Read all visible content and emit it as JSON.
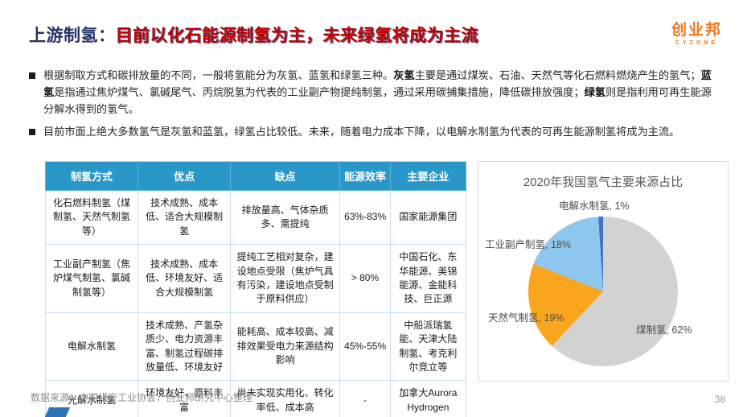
{
  "title": {
    "prefix": "上游制氢：",
    "highlight": "目前以化石能源制氢为主，未来绿氢将成为主流"
  },
  "logo": {
    "name": "创业邦",
    "subname": "CYZONE"
  },
  "bullets": [
    {
      "segments": [
        {
          "text": "根据制取方式和碳排放量的不同，一般将氢能分为灰氢、蓝氢和绿氢三种。",
          "bold": false
        },
        {
          "text": "灰氢",
          "bold": true
        },
        {
          "text": "主要是通过煤炭、石油、天然气等化石燃料燃烧产生的氢气；",
          "bold": false
        },
        {
          "text": "蓝氢",
          "bold": true
        },
        {
          "text": "是指通过焦炉煤气、氯碱尾气、丙烷脱氢为代表的工业副产物提纯制氢，通过采用碳捕集措施，降低碳排放强度；",
          "bold": false
        },
        {
          "text": "绿氢",
          "bold": true
        },
        {
          "text": "则是指利用可再生能源分解水得到的氢气。",
          "bold": false
        }
      ]
    },
    {
      "segments": [
        {
          "text": "目前市面上绝大多数氢气是灰氢和蓝氢，绿氢占比较低。",
          "bold": false
        },
        {
          "text": "未来，随着电力成本下降，以电解水制氢为代表的可再生能源制氢将成为主流。",
          "bold": false
        }
      ]
    }
  ],
  "table": {
    "headers": [
      "制氢方式",
      "优点",
      "缺点",
      "能源效率",
      "主要企业"
    ],
    "rows": [
      [
        "化石燃料制氢（煤制氢、天然气制氢等）",
        "技术成熟、成本低、适合大规模制氢",
        "排放量高、气体杂质多、需提纯",
        "63%-83%",
        "国家能源集团"
      ],
      [
        "工业副产制氢（焦炉煤气制氢、氯碱制氢等）",
        "技术成熟、成本低、环境友好、适合大规模制氢",
        "提纯工艺相对复杂，建设地点受限（焦炉气具有污染，建设地点受制于原料供应）",
        "> 80%",
        "中国石化、东华能源、美锦能源、金能科技、巨正源"
      ],
      [
        "电解水制氢",
        "技术成熟、产氢杂质少、电力资源丰富、制氢过程碳排放量低、环境友好",
        "能耗高、成本较高、减排效果受电力来源结构影响",
        "45%-55%",
        "中船派瑞氢能、天津大陆制氢、考克利尔竞立等"
      ],
      [
        "光解水制氢",
        "环境友好、原料丰富",
        "尚未实现实用化、转化率低、成本高",
        "-",
        "加拿大Aurora Hydrogen"
      ]
    ]
  },
  "chart_data": {
    "type": "pie",
    "title": "2020年我国氢气主要来源占比",
    "start_angle_deg": 0,
    "direction": "clockwise",
    "legend_position": "data-labels",
    "slices": [
      {
        "label": "煤制氢",
        "value": 62,
        "color": "#D2D2D2"
      },
      {
        "label": "天然气制氢",
        "value": 19,
        "color": "#FAA51E"
      },
      {
        "label": "工业副产制氢",
        "value": 18,
        "color": "#8FC8EF"
      },
      {
        "label": "电解水制氢",
        "value": 1,
        "color": "#4472C4"
      }
    ]
  },
  "footer": {
    "source": "数据来源：中国煤炭工业协会，创业邦研究中心整理",
    "page": "38"
  },
  "colors": {
    "title_navy": "#26336B",
    "title_red": "#C00000",
    "table_header_bg": "#2997C7",
    "logo_orange": "#F0761E",
    "panel_border": "#D9D9D9"
  }
}
